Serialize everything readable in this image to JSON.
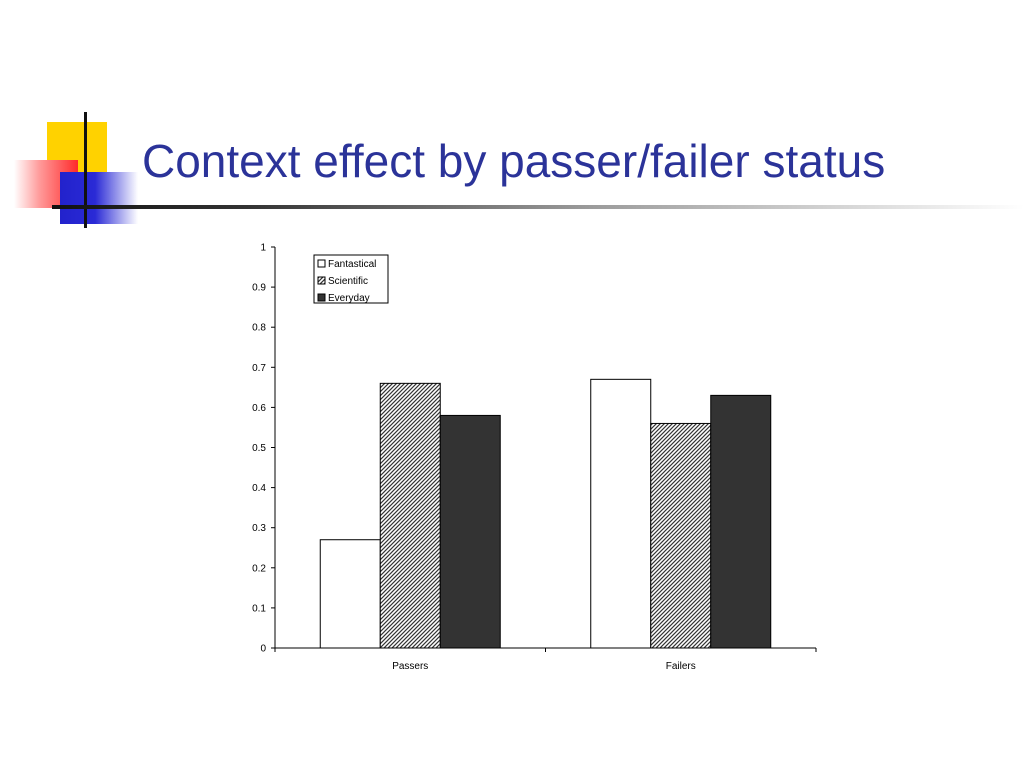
{
  "slide": {
    "title": "Context effect by passer/failer status"
  },
  "chart_data": {
    "type": "bar",
    "categories": [
      "Passers",
      "Failers"
    ],
    "series": [
      {
        "name": "Fantastical",
        "values": [
          0.27,
          0.67
        ],
        "fill": "white"
      },
      {
        "name": "Scientific",
        "values": [
          0.66,
          0.56
        ],
        "fill": "hatched"
      },
      {
        "name": "Everyday",
        "values": [
          0.58,
          0.63
        ],
        "fill": "#333333"
      }
    ],
    "ylim": [
      0,
      1
    ],
    "yticks": [
      "0",
      "0.1",
      "0.2",
      "0.3",
      "0.4",
      "0.5",
      "0.6",
      "0.7",
      "0.8",
      "0.9",
      "1"
    ],
    "xlabel": "",
    "ylabel": "",
    "legend": "top-left",
    "grid": false
  }
}
